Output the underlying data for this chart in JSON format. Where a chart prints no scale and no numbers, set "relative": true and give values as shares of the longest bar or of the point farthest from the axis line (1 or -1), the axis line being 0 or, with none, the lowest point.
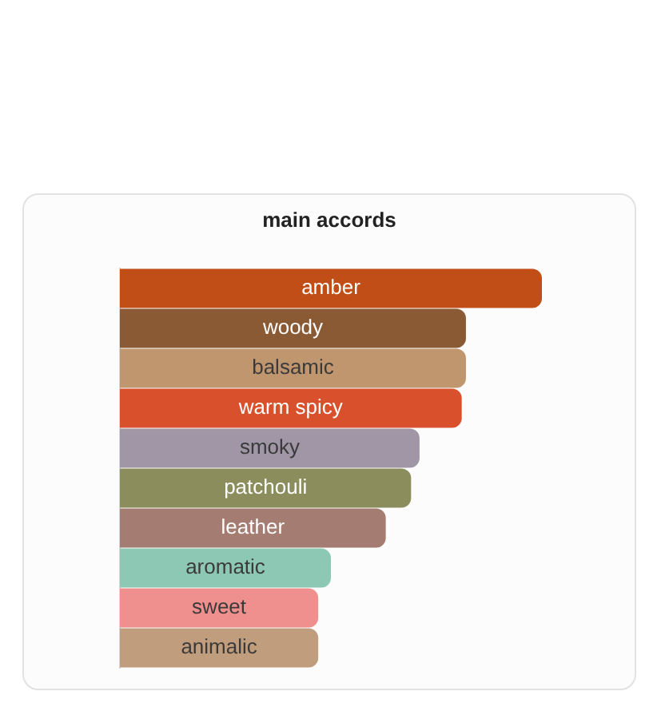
{
  "chart_data": {
    "type": "bar",
    "orientation": "horizontal",
    "relative": true,
    "title": "main accords",
    "categories": [
      "amber",
      "woody",
      "balsamic",
      "warm spicy",
      "smoky",
      "patchouli",
      "leather",
      "aromatic",
      "sweet",
      "animalic"
    ],
    "values": [
      1,
      0.82,
      0.82,
      0.81,
      0.71,
      0.69,
      0.63,
      0.5,
      0.47,
      0.47
    ],
    "colors": [
      "#c04e16",
      "#8a5a35",
      "#c0966f",
      "#d8502c",
      "#a096a6",
      "#8b8d5c",
      "#a47c72",
      "#8dc8b5",
      "#f0908e",
      "#c09d7c"
    ],
    "legend": false
  }
}
